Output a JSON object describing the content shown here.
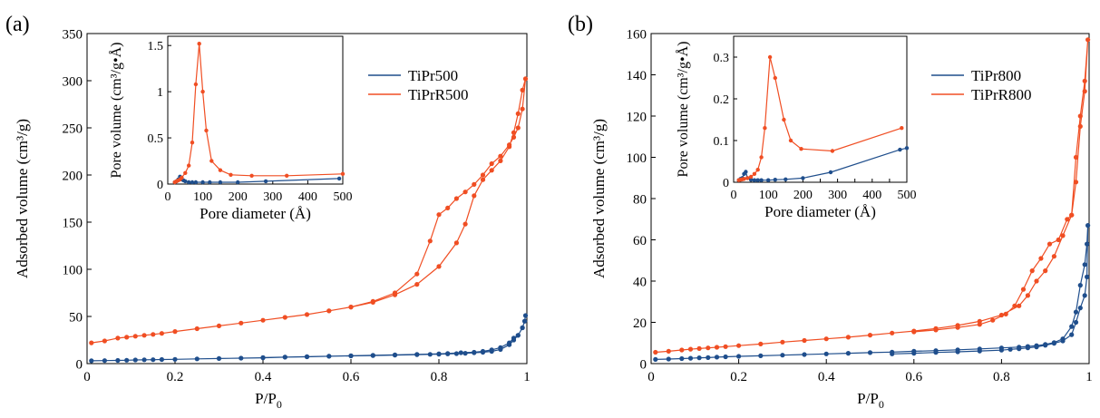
{
  "colors": {
    "blue": "#1f4e8c",
    "orange": "#f04e23",
    "axis": "#000000"
  },
  "chart_data": [
    {
      "panel": "(a)",
      "type": "line",
      "xlabel": "P/P0",
      "ylabel": "Adsorbed volume (cm³/g)",
      "xlim": [
        0,
        1
      ],
      "ylim": [
        0,
        350
      ],
      "xticks": [
        0,
        0.2,
        0.4,
        0.6,
        0.8,
        1
      ],
      "xtick_labels": [
        "0",
        "0.2",
        "0.4",
        "0.6",
        "0.8",
        "1"
      ],
      "yticks": [
        0,
        50,
        100,
        150,
        200,
        250,
        300,
        350
      ],
      "ytick_labels": [
        "0",
        "50",
        "100",
        "150",
        "200",
        "250",
        "300",
        "350"
      ],
      "legend_position": "top-right",
      "series": [
        {
          "name": "TiPr500",
          "color": "blue",
          "x": [
            0.01,
            0.04,
            0.07,
            0.09,
            0.11,
            0.13,
            0.15,
            0.17,
            0.2,
            0.25,
            0.3,
            0.35,
            0.4,
            0.45,
            0.5,
            0.55,
            0.6,
            0.65,
            0.7,
            0.75,
            0.78,
            0.8,
            0.82,
            0.84,
            0.86,
            0.88,
            0.9,
            0.92,
            0.94,
            0.96,
            0.97,
            0.98,
            0.99,
            0.995,
            0.997,
            0.995,
            0.99,
            0.98,
            0.97,
            0.96,
            0.94,
            0.92,
            0.9,
            0.88,
            0.85,
            0.82,
            0.8,
            0.75,
            0.7,
            0.65,
            0.6,
            0.55,
            0.5,
            0.45,
            0.4
          ],
          "y": [
            3,
            3.2,
            3.4,
            3.6,
            3.8,
            4,
            4.1,
            4.3,
            4.5,
            5,
            5.4,
            5.8,
            6.2,
            6.8,
            7.2,
            7.8,
            8.2,
            8.6,
            9,
            9.5,
            9.8,
            10,
            10.3,
            10.6,
            11,
            11.5,
            12,
            13,
            15,
            20,
            25,
            30,
            38,
            45,
            51,
            45,
            38,
            30,
            27,
            22,
            17,
            14.5,
            13,
            12,
            11.5,
            10.8,
            10.4,
            9.8,
            9.2,
            8.8,
            8.3,
            7.9,
            7.4,
            6.9,
            6.4
          ]
        },
        {
          "name": "TiPrR500",
          "color": "orange",
          "x": [
            0.01,
            0.04,
            0.07,
            0.09,
            0.11,
            0.13,
            0.15,
            0.17,
            0.2,
            0.25,
            0.3,
            0.35,
            0.4,
            0.45,
            0.5,
            0.55,
            0.6,
            0.65,
            0.7,
            0.75,
            0.8,
            0.84,
            0.86,
            0.88,
            0.9,
            0.92,
            0.94,
            0.96,
            0.97,
            0.98,
            0.99,
            0.997,
            0.99,
            0.98,
            0.97,
            0.96,
            0.94,
            0.92,
            0.9,
            0.88,
            0.86,
            0.84,
            0.82,
            0.8,
            0.78,
            0.75,
            0.7,
            0.65,
            0.6,
            0.55
          ],
          "y": [
            22,
            24,
            27,
            28,
            29,
            30,
            31,
            32,
            34,
            37,
            40,
            43,
            46,
            49,
            52,
            56,
            60,
            65,
            73,
            84,
            103,
            128,
            148,
            178,
            195,
            205,
            215,
            230,
            245,
            265,
            290,
            302,
            270,
            250,
            240,
            232,
            220,
            212,
            200,
            190,
            182,
            175,
            165,
            158,
            130,
            95,
            75,
            66,
            60,
            56
          ]
        }
      ],
      "inset": {
        "xlabel": "Pore diameter (Å)",
        "ylabel": "Pore volume (cm³/g•Å)",
        "xlim": [
          0,
          500
        ],
        "ylim": [
          0,
          1.6
        ],
        "xticks": [
          0,
          100,
          200,
          300,
          400,
          500
        ],
        "xtick_labels": [
          "0",
          "100",
          "200",
          "300",
          "400",
          "500"
        ],
        "yticks": [
          0,
          0.5,
          1,
          1.5
        ],
        "ytick_labels": [
          "0",
          "0.5",
          "1",
          "1.5"
        ],
        "series": [
          {
            "name": "TiPr500",
            "color": "blue",
            "x": [
              20,
              25,
              30,
              35,
              40,
              45,
              50,
              60,
              70,
              80,
              100,
              120,
              150,
              200,
              280,
              490
            ],
            "y": [
              0.02,
              0.03,
              0.05,
              0.08,
              0.05,
              0.04,
              0.03,
              0.02,
              0.02,
              0.02,
              0.02,
              0.02,
              0.02,
              0.02,
              0.03,
              0.06
            ]
          },
          {
            "name": "TiPrR500",
            "color": "orange",
            "x": [
              20,
              25,
              30,
              35,
              40,
              50,
              60,
              70,
              80,
              90,
              100,
              110,
              125,
              150,
              180,
              240,
              340,
              500
            ],
            "y": [
              0.02,
              0.03,
              0.04,
              0.05,
              0.07,
              0.12,
              0.2,
              0.45,
              1.08,
              1.52,
              1.0,
              0.58,
              0.25,
              0.15,
              0.1,
              0.09,
              0.09,
              0.11
            ]
          }
        ]
      }
    },
    {
      "panel": "(b)",
      "type": "line",
      "xlabel": "P/P0",
      "ylabel": "Adsorbed volume (cm³/g)",
      "xlim": [
        0,
        1
      ],
      "ylim": [
        0,
        160
      ],
      "xticks": [
        0,
        0.2,
        0.4,
        0.6,
        0.8,
        1
      ],
      "xtick_labels": [
        "0",
        "0.2",
        "0.4",
        "0.6",
        "0.8",
        "1"
      ],
      "yticks": [
        0,
        20,
        40,
        60,
        80,
        100,
        120,
        140,
        160
      ],
      "ytick_labels": [
        "0",
        "20",
        "40",
        "60",
        "80",
        "100",
        "120",
        "140",
        "160"
      ],
      "legend_position": "top-right",
      "series": [
        {
          "name": "TiPr800",
          "color": "blue",
          "x": [
            0.01,
            0.04,
            0.07,
            0.09,
            0.11,
            0.13,
            0.15,
            0.17,
            0.2,
            0.25,
            0.3,
            0.35,
            0.4,
            0.45,
            0.5,
            0.55,
            0.6,
            0.65,
            0.7,
            0.75,
            0.8,
            0.84,
            0.86,
            0.88,
            0.9,
            0.92,
            0.94,
            0.96,
            0.97,
            0.98,
            0.99,
            0.995,
            0.997,
            0.995,
            0.99,
            0.98,
            0.97,
            0.96,
            0.94,
            0.92,
            0.9,
            0.88,
            0.86,
            0.84,
            0.82,
            0.8,
            0.75,
            0.7,
            0.65,
            0.6,
            0.55
          ],
          "y": [
            2,
            2.2,
            2.4,
            2.6,
            2.8,
            2.9,
            3.1,
            3.3,
            3.5,
            3.8,
            4.1,
            4.4,
            4.7,
            5,
            5.3,
            5.6,
            6,
            6.3,
            6.7,
            7.1,
            7.6,
            8,
            8.3,
            8.7,
            9.3,
            10.2,
            12,
            18,
            25,
            38,
            48,
            58,
            67,
            42,
            33,
            27,
            20,
            14,
            11,
            9.8,
            8.9,
            8.1,
            7.6,
            7.2,
            6.9,
            6.5,
            6.1,
            5.7,
            5.4,
            5,
            4.7
          ]
        },
        {
          "name": "TiPrR800",
          "color": "orange",
          "x": [
            0.01,
            0.04,
            0.07,
            0.09,
            0.11,
            0.13,
            0.15,
            0.17,
            0.2,
            0.25,
            0.3,
            0.35,
            0.4,
            0.45,
            0.5,
            0.55,
            0.6,
            0.65,
            0.7,
            0.75,
            0.8,
            0.84,
            0.86,
            0.88,
            0.9,
            0.92,
            0.94,
            0.96,
            0.97,
            0.98,
            0.99,
            0.997,
            0.99,
            0.98,
            0.97,
            0.96,
            0.95,
            0.93,
            0.91,
            0.89,
            0.87,
            0.85,
            0.83,
            0.81,
            0.78,
            0.75,
            0.7,
            0.65,
            0.6
          ],
          "y": [
            5.5,
            6,
            6.6,
            7,
            7.3,
            7.6,
            7.9,
            8.2,
            8.7,
            9.5,
            10.4,
            11.2,
            12,
            12.8,
            13.8,
            14.8,
            15.8,
            17,
            18.5,
            20.5,
            23.5,
            28,
            33,
            40,
            45,
            52,
            62,
            72,
            100,
            120,
            137,
            157,
            132,
            115,
            88,
            72,
            70,
            60,
            58,
            51,
            45,
            36,
            28,
            24,
            21,
            19,
            17.5,
            16.3,
            15.4
          ]
        }
      ],
      "inset": {
        "xlabel": "Pore diameter (Å)",
        "ylabel": "Pore volume (cm³/g•Å)",
        "xlim": [
          0,
          500
        ],
        "ylim": [
          0,
          0.35
        ],
        "xticks": [
          0,
          50,
          100,
          150,
          200,
          250,
          300,
          350,
          400,
          450,
          500
        ],
        "xtick_labels": [
          "0",
          "",
          "100",
          "",
          "200",
          "",
          "300",
          "",
          "400",
          "",
          "500"
        ],
        "yticks": [
          0,
          0.1,
          0.2,
          0.3
        ],
        "ytick_labels": [
          "0",
          "0.1",
          "0.2",
          "0.3"
        ],
        "series": [
          {
            "name": "TiPr800",
            "color": "blue",
            "x": [
              15,
              20,
              25,
              30,
              35,
              40,
              50,
              60,
              70,
              80,
              100,
              120,
              150,
              200,
              280,
              480,
              500
            ],
            "y": [
              0.005,
              0.008,
              0.01,
              0.02,
              0.025,
              0.01,
              0.006,
              0.005,
              0.005,
              0.005,
              0.005,
              0.006,
              0.007,
              0.01,
              0.024,
              0.078,
              0.082
            ]
          },
          {
            "name": "TiPrR800",
            "color": "orange",
            "x": [
              15,
              20,
              25,
              30,
              40,
              50,
              60,
              70,
              80,
              90,
              105,
              120,
              145,
              165,
              195,
              285,
              485
            ],
            "y": [
              0.005,
              0.006,
              0.007,
              0.008,
              0.01,
              0.013,
              0.02,
              0.03,
              0.06,
              0.13,
              0.3,
              0.25,
              0.15,
              0.1,
              0.08,
              0.075,
              0.13
            ]
          }
        ]
      }
    }
  ]
}
